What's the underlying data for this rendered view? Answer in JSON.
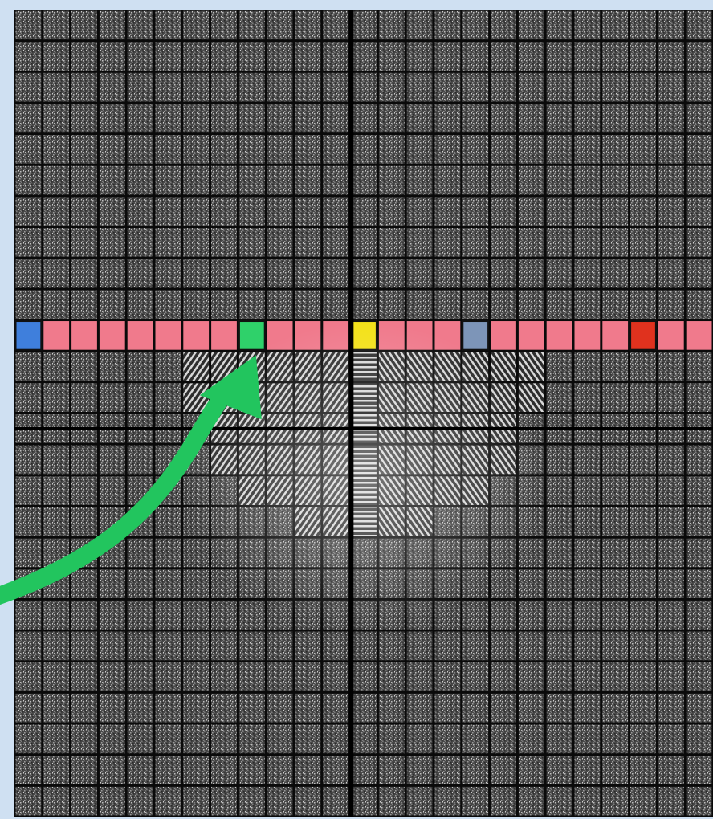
{
  "figure": {
    "grid_rows": 26,
    "grid_cols": 25,
    "center_row": 10,
    "center_col": 12,
    "highlighted_row": 10,
    "colors": {
      "frame": "#cfe0f2",
      "background": "#0a0a0a",
      "tile_base": "#4a4a4a",
      "row_highlight": "#f07a8c",
      "axis_lines": "#000000",
      "arrow": "#22c55e"
    },
    "special_tiles": [
      {
        "name": "blue-tile",
        "col": 0,
        "color": "#3f7fdc"
      },
      {
        "name": "green-tile",
        "col": 8,
        "color": "#2fd16a"
      },
      {
        "name": "yellow-tile",
        "col": 12,
        "color": "#f3e11a"
      },
      {
        "name": "steel-blue-tile",
        "col": 16,
        "color": "#7d95b8"
      },
      {
        "name": "red-tile",
        "col": 22,
        "color": "#e0321e"
      }
    ],
    "arrow": {
      "from": "left-edge",
      "to": "green-tile",
      "icon": "curved-arrow"
    }
  }
}
